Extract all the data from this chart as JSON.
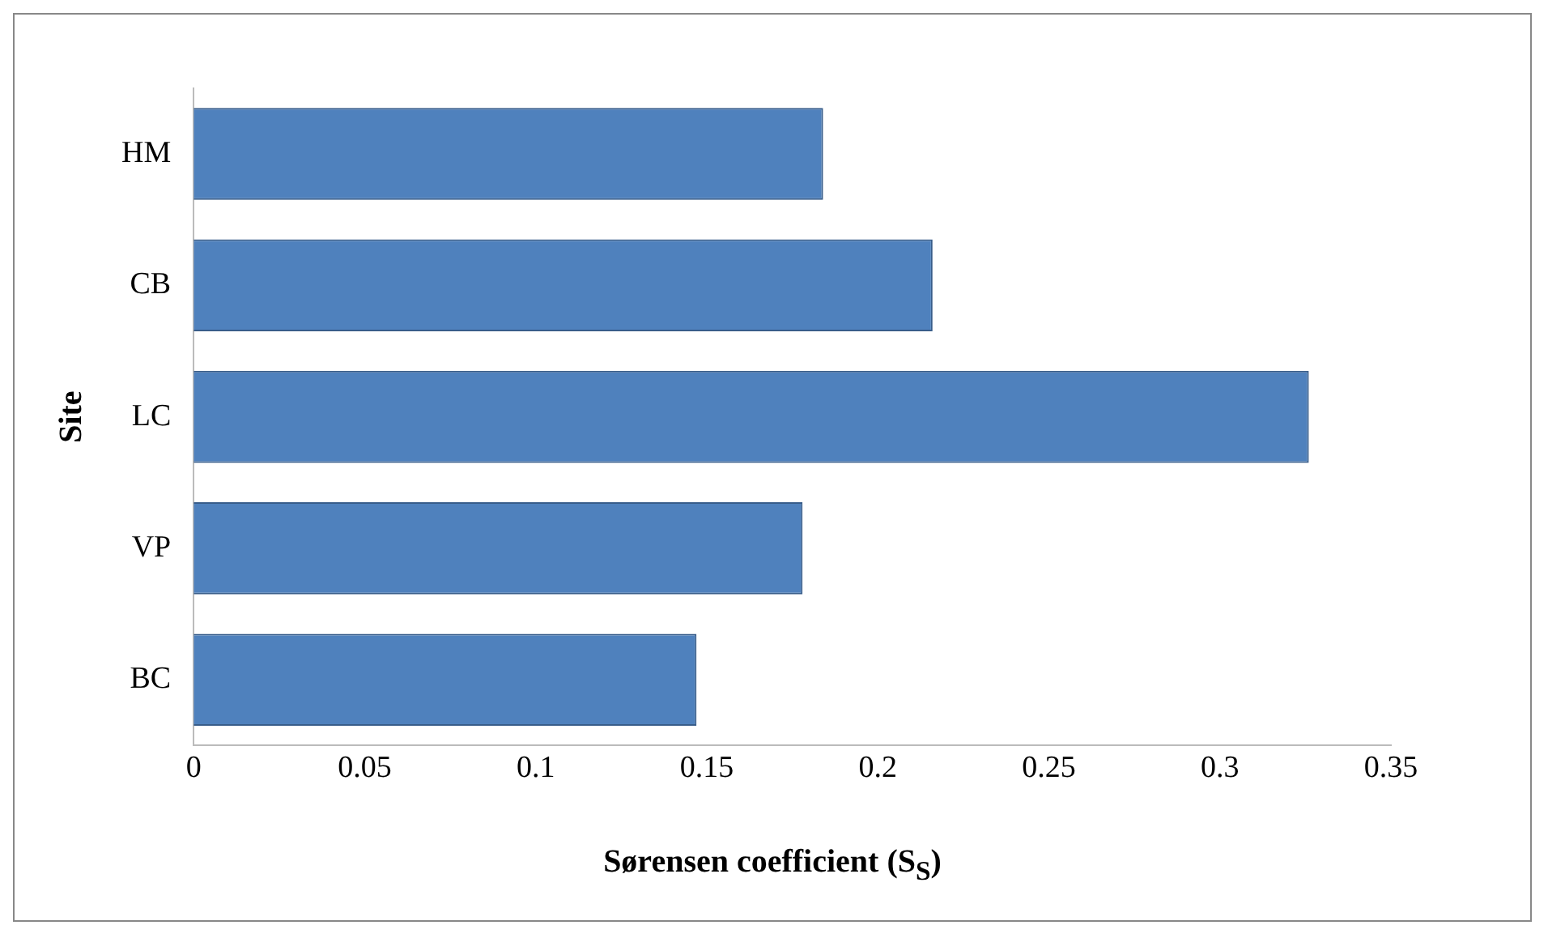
{
  "chart_data": {
    "type": "bar",
    "orientation": "horizontal",
    "categories": [
      "HM",
      "CB",
      "LC",
      "VP",
      "BC"
    ],
    "values": [
      0.184,
      0.216,
      0.326,
      0.178,
      0.147
    ],
    "color": "#4f81bd",
    "xlim": [
      0,
      0.35
    ],
    "xticks": [
      0,
      0.05,
      0.1,
      0.15,
      0.2,
      0.25,
      0.3,
      0.35
    ],
    "xlabel": "Sørensen coefficient (S$_{S}$)",
    "ylabel": "Site",
    "grid": false,
    "legend": false
  }
}
